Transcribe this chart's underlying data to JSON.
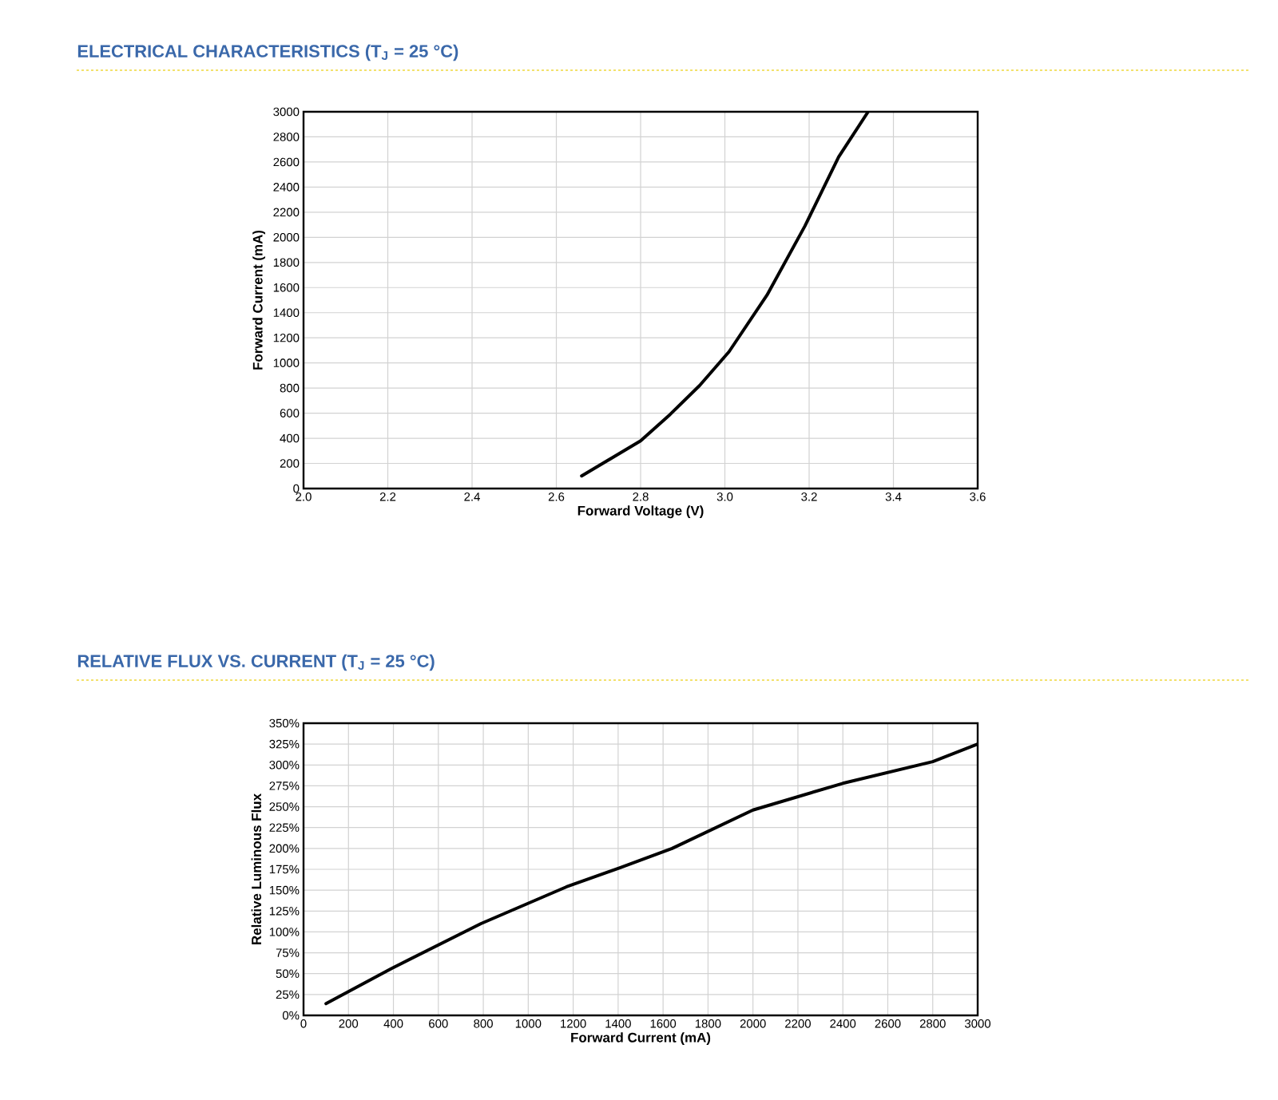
{
  "chart_data": [
    {
      "type": "line",
      "title": "ELECTRICAL CHARACTERISTICS (T$_{J}$ = 25 °C)",
      "xlabel": "Forward Voltage (V)",
      "ylabel": "Forward Current (mA)",
      "x": [
        2.66,
        2.8,
        2.87,
        2.94,
        3.01,
        3.1,
        3.19,
        3.27,
        3.34
      ],
      "series": [
        {
          "color": "#000000",
          "values": [
            100,
            380,
            590,
            820,
            1090,
            1540,
            2090,
            2640,
            3000
          ]
        }
      ],
      "xlim": [
        2.0,
        3.6
      ],
      "ylim": [
        0,
        3000
      ],
      "xticks": [
        {
          "value": 2.0,
          "label": "2.0"
        },
        {
          "value": 2.2,
          "label": "2.2"
        },
        {
          "value": 2.4,
          "label": "2.4"
        },
        {
          "value": 2.6,
          "label": "2.6"
        },
        {
          "value": 2.8,
          "label": "2.8"
        },
        {
          "value": 3.0,
          "label": "3.0"
        },
        {
          "value": 3.2,
          "label": "3.2"
        },
        {
          "value": 3.4,
          "label": "3.4"
        },
        {
          "value": 3.6,
          "label": "3.6"
        }
      ],
      "yticks": [
        0,
        200,
        400,
        600,
        800,
        1000,
        1200,
        1400,
        1600,
        1800,
        2000,
        2200,
        2400,
        2600,
        2800,
        3000
      ],
      "grid": true,
      "marker": "none",
      "line_style": "solid"
    },
    {
      "type": "line",
      "title": "RELATIVE FLUX VS. CURRENT (T$_{J}$ = 25 °C)",
      "xlabel": "Forward Current (mA)",
      "ylabel": "Relative Luminous Flux",
      "x": [
        100,
        390,
        790,
        1170,
        1410,
        1640,
        2000,
        2400,
        2800,
        3000
      ],
      "series": [
        {
          "color": "#000000",
          "values": [
            14,
            56,
            110,
            154,
            177,
            200,
            246,
            278,
            304,
            325
          ]
        }
      ],
      "xlim": [
        0,
        3000
      ],
      "ylim": [
        0,
        350
      ],
      "xticks": [
        0,
        200,
        400,
        600,
        800,
        1000,
        1200,
        1400,
        1600,
        1800,
        2000,
        2200,
        2400,
        2600,
        2800,
        3000
      ],
      "yticks": [
        {
          "value": 0,
          "label": "0%"
        },
        {
          "value": 25,
          "label": "25%"
        },
        {
          "value": 50,
          "label": "50%"
        },
        {
          "value": 75,
          "label": "75%"
        },
        {
          "value": 100,
          "label": "100%"
        },
        {
          "value": 125,
          "label": "125%"
        },
        {
          "value": 150,
          "label": "150%"
        },
        {
          "value": 175,
          "label": "175%"
        },
        {
          "value": 200,
          "label": "200%"
        },
        {
          "value": 225,
          "label": "225%"
        },
        {
          "value": 250,
          "label": "250%"
        },
        {
          "value": 275,
          "label": "275%"
        },
        {
          "value": 300,
          "label": "300%"
        },
        {
          "value": 325,
          "label": "325%"
        },
        {
          "value": 350,
          "label": "350%"
        }
      ],
      "grid": true,
      "marker": "none",
      "line_style": "solid"
    }
  ]
}
